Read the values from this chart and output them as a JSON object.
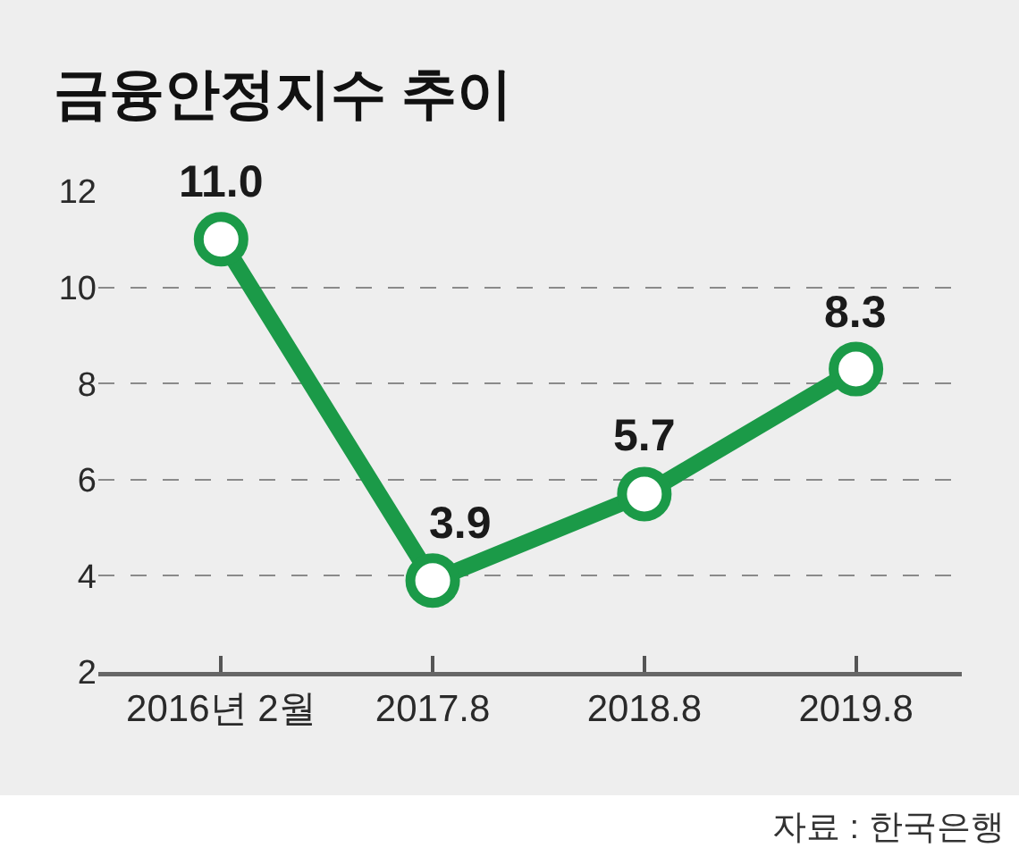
{
  "chart_data": {
    "type": "line",
    "title": "금융안정지수 추이",
    "categories": [
      "2016년 2월",
      "2017.8",
      "2018.8",
      "2019.8"
    ],
    "values": [
      11.0,
      3.9,
      5.7,
      8.3
    ],
    "color": "#1b9a48",
    "value_labels": [
      "11.0",
      "3.9",
      "5.7",
      "8.3"
    ],
    "ylim": [
      2,
      12
    ],
    "yticks": [
      2,
      4,
      6,
      8,
      10,
      12
    ],
    "grid": "y",
    "marker": "circle",
    "line_style": "solid",
    "annotations": [
      "자료 : 한국은행"
    ]
  }
}
